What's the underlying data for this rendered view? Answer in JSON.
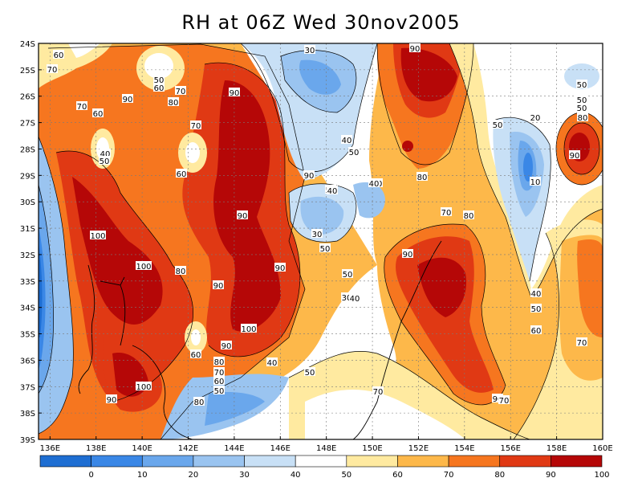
{
  "title": "RH at 06Z Wed 30nov2005",
  "map": {
    "lat_labels": [
      "24S",
      "25S",
      "26S",
      "27S",
      "28S",
      "29S",
      "30S",
      "31S",
      "32S",
      "33S",
      "34S",
      "35S",
      "36S",
      "37S",
      "38S",
      "39S"
    ],
    "lon_labels": [
      "136E",
      "138E",
      "140E",
      "142E",
      "144E",
      "146E",
      "148E",
      "150E",
      "152E",
      "154E",
      "156E",
      "158E",
      "160E"
    ],
    "grid": "dashed"
  },
  "colorbar": {
    "colors": [
      "#1e6ed2",
      "#3a87e6",
      "#6aa7ec",
      "#9ac4f0",
      "#c8e0f6",
      "#ffffff",
      "#ffeaa0",
      "#fdb84a",
      "#f6761f",
      "#e03914",
      "#b50707"
    ],
    "labels": [
      "0",
      "10",
      "20",
      "30",
      "40",
      "50",
      "60",
      "70",
      "80",
      "90",
      "100"
    ]
  },
  "contour_labels": [
    {
      "text": "60"
    },
    {
      "text": "70"
    },
    {
      "text": "70"
    },
    {
      "text": "60"
    },
    {
      "text": "90"
    },
    {
      "text": "40"
    },
    {
      "text": "50"
    },
    {
      "text": "50"
    },
    {
      "text": "60"
    },
    {
      "text": "70"
    },
    {
      "text": "80"
    },
    {
      "text": "90"
    },
    {
      "text": "70"
    },
    {
      "text": "60"
    },
    {
      "text": "30"
    },
    {
      "text": "40"
    },
    {
      "text": "50"
    },
    {
      "text": "90"
    },
    {
      "text": "80"
    },
    {
      "text": "90"
    },
    {
      "text": "80"
    },
    {
      "text": "50"
    },
    {
      "text": "40"
    },
    {
      "text": "30"
    },
    {
      "text": "20"
    },
    {
      "text": "10"
    },
    {
      "text": "90"
    },
    {
      "text": "50"
    },
    {
      "text": "50"
    },
    {
      "text": "50"
    },
    {
      "text": "80"
    },
    {
      "text": "100"
    },
    {
      "text": "100"
    },
    {
      "text": "90"
    },
    {
      "text": "90"
    },
    {
      "text": "80"
    },
    {
      "text": "90"
    },
    {
      "text": "90"
    },
    {
      "text": "100"
    },
    {
      "text": "90"
    },
    {
      "text": "60"
    },
    {
      "text": "80"
    },
    {
      "text": "70"
    },
    {
      "text": "60"
    },
    {
      "text": "50"
    },
    {
      "text": "40"
    },
    {
      "text": "50"
    },
    {
      "text": "30"
    },
    {
      "text": "40"
    },
    {
      "text": "40"
    },
    {
      "text": "50"
    },
    {
      "text": "50"
    },
    {
      "text": "40"
    },
    {
      "text": "70"
    },
    {
      "text": "80"
    },
    {
      "text": "70"
    },
    {
      "text": "90"
    },
    {
      "text": "90"
    },
    {
      "text": "100"
    },
    {
      "text": "90"
    },
    {
      "text": "70"
    },
    {
      "text": "40"
    },
    {
      "text": "50"
    },
    {
      "text": "60"
    },
    {
      "text": "70"
    },
    {
      "text": "50"
    },
    {
      "text": "80"
    }
  ]
}
